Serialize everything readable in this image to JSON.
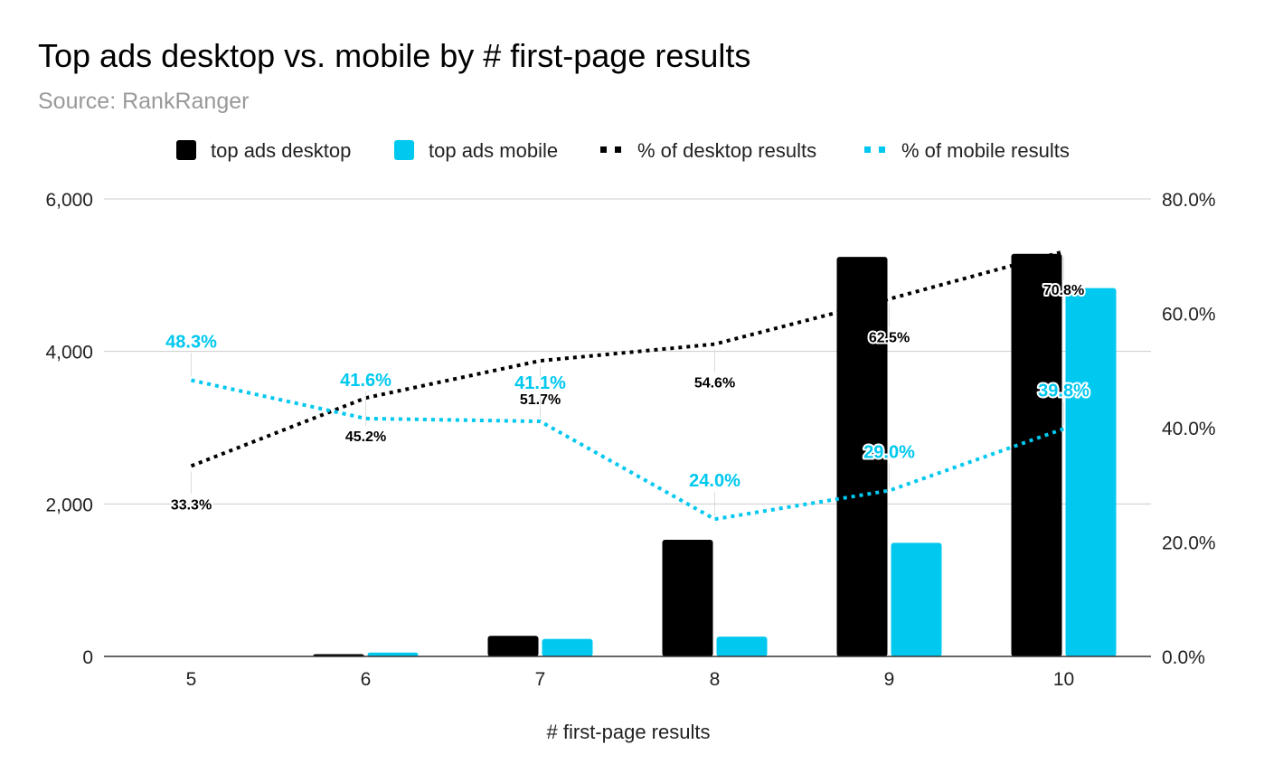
{
  "chart_data": {
    "type": "bar",
    "title": "Top ads desktop vs. mobile by # first-page results",
    "subtitle": "Source: RankRanger",
    "xlabel": "# first-page results",
    "ylabel": "",
    "ylabel_right": "",
    "categories": [
      "5",
      "6",
      "7",
      "8",
      "9",
      "10"
    ],
    "ylim": [
      0,
      6000
    ],
    "ylim_right": [
      0,
      80
    ],
    "yticks": [
      "0",
      "2,000",
      "4,000",
      "6,000"
    ],
    "yticks_right": [
      "0.0%",
      "20.0%",
      "40.0%",
      "60.0%",
      "80.0%"
    ],
    "grid": true,
    "legend_position": "top",
    "series": [
      {
        "name": "top ads desktop",
        "kind": "bar",
        "axis": "left",
        "color": "#000000",
        "values": [
          0,
          30,
          270,
          1530,
          5240,
          5280
        ]
      },
      {
        "name": "top ads mobile",
        "kind": "bar",
        "axis": "left",
        "color": "#00c8ef",
        "values": [
          0,
          50,
          230,
          260,
          1490,
          4830
        ]
      },
      {
        "name": "% of desktop results",
        "kind": "line",
        "style": "dotted",
        "axis": "right",
        "color": "#000000",
        "values": [
          33.3,
          45.2,
          51.7,
          54.6,
          62.5,
          70.8
        ],
        "labels": [
          "33.3%",
          "45.2%",
          "51.7%",
          "54.6%",
          "62.5%",
          "70.8%"
        ]
      },
      {
        "name": "% of mobile results",
        "kind": "line",
        "style": "dotted",
        "axis": "right",
        "color": "#00c8ef",
        "values": [
          48.3,
          41.6,
          41.1,
          24.0,
          29.0,
          39.8
        ],
        "labels": [
          "48.3%",
          "41.6%",
          "41.1%",
          "24.0%",
          "29.0%",
          "39.8%"
        ]
      }
    ]
  }
}
